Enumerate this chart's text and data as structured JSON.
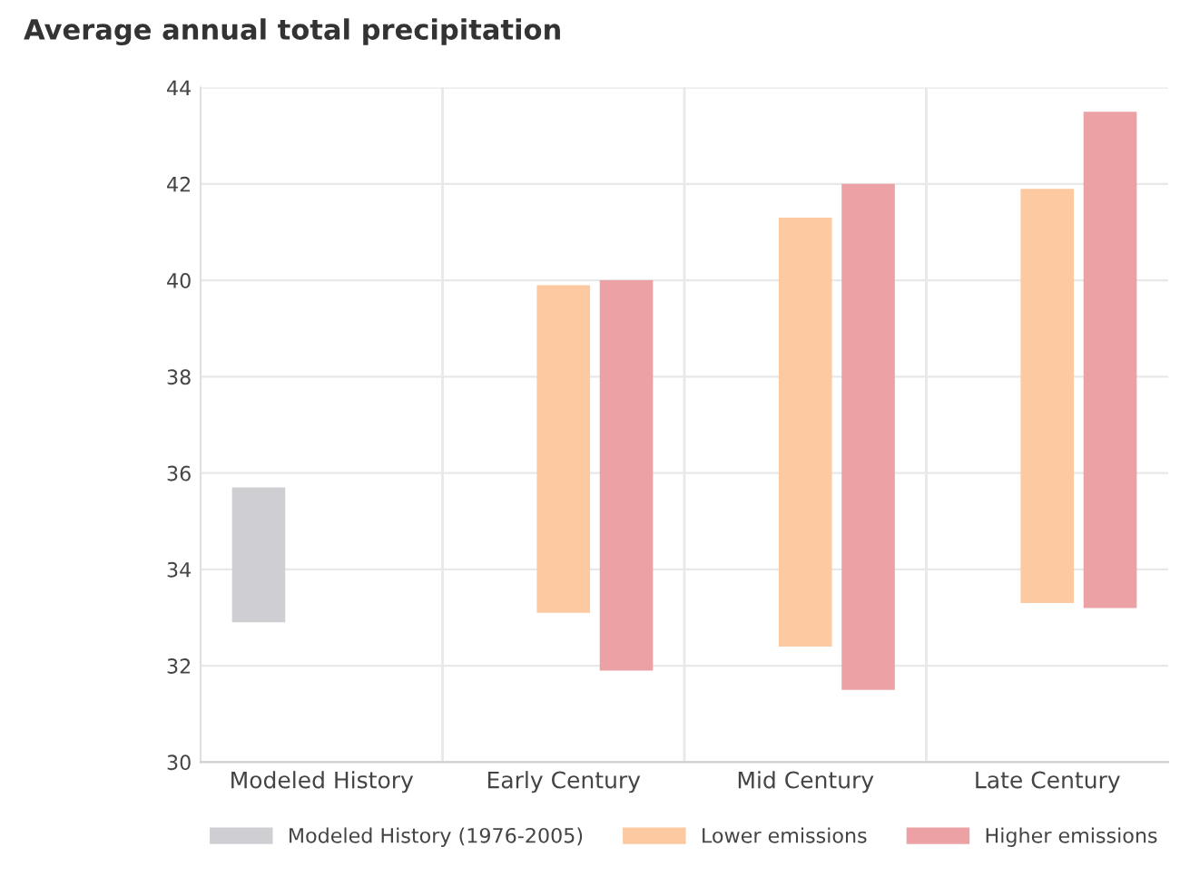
{
  "chart_data": {
    "type": "bar",
    "title": "Average annual total precipitation",
    "categories": [
      "Modeled History",
      "Early Century",
      "Mid Century",
      "Late Century"
    ],
    "series": [
      {
        "name": "Modeled History (1976-2005)",
        "color": "#cfcfd3",
        "values": [
          2.8,
          null,
          null,
          null
        ],
        "base": [
          32.9,
          null,
          null,
          null
        ]
      },
      {
        "name": "Lower emissions",
        "color": "#fcc9a0",
        "values": [
          null,
          6.8,
          8.9,
          8.6
        ],
        "base": [
          null,
          33.1,
          32.4,
          33.3
        ]
      },
      {
        "name": "Higher emissions",
        "color": "#eca2a4",
        "values": [
          null,
          8.1,
          10.5,
          10.3
        ],
        "base": [
          null,
          31.9,
          31.5,
          33.2
        ]
      }
    ],
    "ylim": [
      30,
      44
    ],
    "yticks": [
      30,
      32,
      34,
      36,
      38,
      40,
      42,
      44
    ],
    "grid": true,
    "legend": "bottom"
  }
}
